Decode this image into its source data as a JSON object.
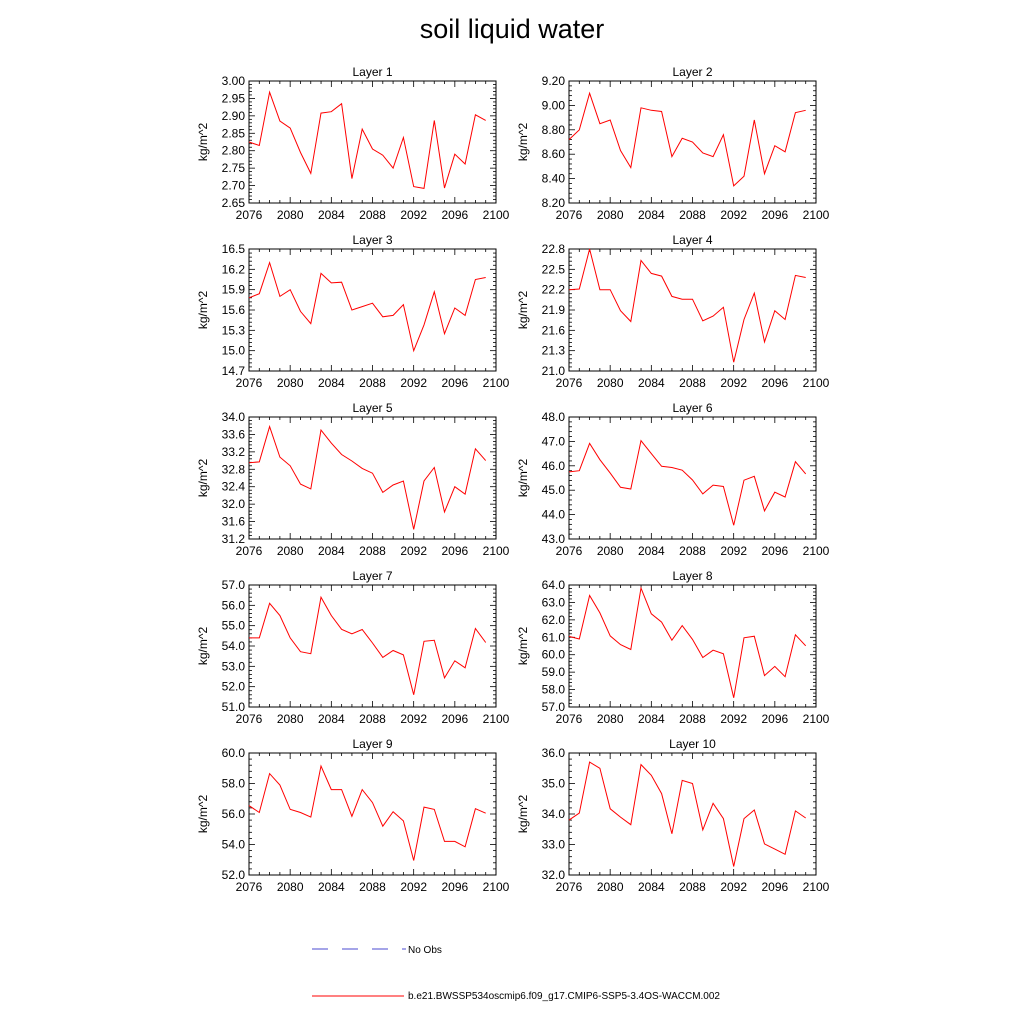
{
  "title": "soil liquid water",
  "colors": {
    "model_line": "#ff0000",
    "obs_line": "#4b4bd0",
    "axis": "#000000"
  },
  "legend": {
    "obs_label": "No Obs",
    "model_label": "b.e21.BWSSP534oscmip6.f09_g17.CMIP6-SSP5-3.4OS-WACCM.002"
  },
  "chart_data": [
    {
      "type": "line",
      "title": "Layer 1",
      "ylabel": "kg/m^2",
      "xlim": [
        2076,
        2100
      ],
      "xticks": [
        2076,
        2080,
        2084,
        2088,
        2092,
        2096,
        2100
      ],
      "ylim": [
        2.65,
        3.0
      ],
      "yticks": [
        "2.65",
        "2.70",
        "2.75",
        "2.80",
        "2.85",
        "2.90",
        "2.95",
        "3.00"
      ],
      "x": [
        2076,
        2077,
        2078,
        2079,
        2080,
        2081,
        2082,
        2083,
        2084,
        2085,
        2086,
        2087,
        2088,
        2089,
        2090,
        2091,
        2092,
        2093,
        2094,
        2095,
        2096,
        2097,
        2098,
        2099
      ],
      "values": [
        2.825,
        2.815,
        2.968,
        2.885,
        2.865,
        2.795,
        2.735,
        2.908,
        2.912,
        2.935,
        2.72,
        2.862,
        2.805,
        2.787,
        2.75,
        2.838,
        2.697,
        2.692,
        2.887,
        2.693,
        2.79,
        2.762,
        2.903,
        2.887
      ]
    },
    {
      "type": "line",
      "title": "Layer 2",
      "ylabel": "kg/m^2",
      "xlim": [
        2076,
        2100
      ],
      "xticks": [
        2076,
        2080,
        2084,
        2088,
        2092,
        2096,
        2100
      ],
      "ylim": [
        8.2,
        9.2
      ],
      "yticks": [
        "8.20",
        "8.40",
        "8.60",
        "8.80",
        "9.00",
        "9.20"
      ],
      "x": [
        2076,
        2077,
        2078,
        2079,
        2080,
        2081,
        2082,
        2083,
        2084,
        2085,
        2086,
        2087,
        2088,
        2089,
        2090,
        2091,
        2092,
        2093,
        2094,
        2095,
        2096,
        2097,
        2098,
        2099
      ],
      "values": [
        8.72,
        8.8,
        9.1,
        8.85,
        8.88,
        8.63,
        8.49,
        8.98,
        8.96,
        8.95,
        8.58,
        8.73,
        8.7,
        8.61,
        8.58,
        8.76,
        8.34,
        8.42,
        8.88,
        8.44,
        8.67,
        8.62,
        8.94,
        8.96
      ]
    },
    {
      "type": "line",
      "title": "Layer 3",
      "ylabel": "kg/m^2",
      "xlim": [
        2076,
        2100
      ],
      "xticks": [
        2076,
        2080,
        2084,
        2088,
        2092,
        2096,
        2100
      ],
      "ylim": [
        14.7,
        16.5
      ],
      "yticks": [
        "14.7",
        "15.0",
        "15.3",
        "15.6",
        "15.9",
        "16.2",
        "16.5"
      ],
      "x": [
        2076,
        2077,
        2078,
        2079,
        2080,
        2081,
        2082,
        2083,
        2084,
        2085,
        2086,
        2087,
        2088,
        2089,
        2090,
        2091,
        2092,
        2093,
        2094,
        2095,
        2096,
        2097,
        2098,
        2099
      ],
      "values": [
        15.78,
        15.84,
        16.3,
        15.8,
        15.9,
        15.58,
        15.4,
        16.14,
        16.0,
        16.01,
        15.6,
        15.65,
        15.7,
        15.5,
        15.52,
        15.68,
        15.0,
        15.38,
        15.87,
        15.25,
        15.63,
        15.52,
        16.05,
        16.08
      ]
    },
    {
      "type": "line",
      "title": "Layer 4",
      "ylabel": "kg/m^2",
      "xlim": [
        2076,
        2100
      ],
      "xticks": [
        2076,
        2080,
        2084,
        2088,
        2092,
        2096,
        2100
      ],
      "ylim": [
        21.0,
        22.8
      ],
      "yticks": [
        "21.0",
        "21.3",
        "21.6",
        "21.9",
        "22.2",
        "22.5",
        "22.8"
      ],
      "x": [
        2076,
        2077,
        2078,
        2079,
        2080,
        2081,
        2082,
        2083,
        2084,
        2085,
        2086,
        2087,
        2088,
        2089,
        2090,
        2091,
        2092,
        2093,
        2094,
        2095,
        2096,
        2097,
        2098,
        2099
      ],
      "values": [
        22.2,
        22.21,
        22.8,
        22.2,
        22.2,
        21.89,
        21.73,
        22.63,
        22.44,
        22.4,
        22.1,
        22.06,
        22.06,
        21.74,
        21.81,
        21.94,
        21.13,
        21.76,
        22.15,
        21.43,
        21.89,
        21.76,
        22.41,
        22.38
      ]
    },
    {
      "type": "line",
      "title": "Layer 5",
      "ylabel": "kg/m^2",
      "xlim": [
        2076,
        2100
      ],
      "xticks": [
        2076,
        2080,
        2084,
        2088,
        2092,
        2096,
        2100
      ],
      "ylim": [
        31.2,
        34.0
      ],
      "yticks": [
        "31.2",
        "31.6",
        "32.0",
        "32.4",
        "32.8",
        "33.2",
        "33.6",
        "34.0"
      ],
      "x": [
        2076,
        2077,
        2078,
        2079,
        2080,
        2081,
        2082,
        2083,
        2084,
        2085,
        2086,
        2087,
        2088,
        2089,
        2090,
        2091,
        2092,
        2093,
        2094,
        2095,
        2096,
        2097,
        2098,
        2099
      ],
      "values": [
        32.95,
        32.97,
        33.78,
        33.08,
        32.88,
        32.46,
        32.35,
        33.7,
        33.4,
        33.14,
        32.99,
        32.82,
        32.71,
        32.27,
        32.44,
        32.53,
        31.42,
        32.53,
        32.84,
        31.82,
        32.4,
        32.23,
        33.27,
        33.0
      ]
    },
    {
      "type": "line",
      "title": "Layer 6",
      "ylabel": "kg/m^2",
      "xlim": [
        2076,
        2100
      ],
      "xticks": [
        2076,
        2080,
        2084,
        2088,
        2092,
        2096,
        2100
      ],
      "ylim": [
        43.0,
        48.0
      ],
      "yticks": [
        "43.0",
        "44.0",
        "45.0",
        "46.0",
        "47.0",
        "48.0"
      ],
      "x": [
        2076,
        2077,
        2078,
        2079,
        2080,
        2081,
        2082,
        2083,
        2084,
        2085,
        2086,
        2087,
        2088,
        2089,
        2090,
        2091,
        2092,
        2093,
        2094,
        2095,
        2096,
        2097,
        2098,
        2099
      ],
      "values": [
        45.75,
        45.8,
        46.92,
        46.25,
        45.7,
        45.12,
        45.05,
        47.03,
        46.5,
        45.98,
        45.93,
        45.82,
        45.42,
        44.85,
        45.21,
        45.15,
        43.56,
        45.41,
        45.57,
        44.15,
        44.92,
        44.72,
        46.17,
        45.67
      ]
    },
    {
      "type": "line",
      "title": "Layer 7",
      "ylabel": "kg/m^2",
      "xlim": [
        2076,
        2100
      ],
      "xticks": [
        2076,
        2080,
        2084,
        2088,
        2092,
        2096,
        2100
      ],
      "ylim": [
        51.0,
        57.0
      ],
      "yticks": [
        "51.0",
        "52.0",
        "53.0",
        "54.0",
        "55.0",
        "56.0",
        "57.0"
      ],
      "x": [
        2076,
        2077,
        2078,
        2079,
        2080,
        2081,
        2082,
        2083,
        2084,
        2085,
        2086,
        2087,
        2088,
        2089,
        2090,
        2091,
        2092,
        2093,
        2094,
        2095,
        2096,
        2097,
        2098,
        2099
      ],
      "values": [
        54.4,
        54.4,
        56.1,
        55.5,
        54.4,
        53.72,
        53.62,
        56.4,
        55.5,
        54.82,
        54.6,
        54.81,
        54.15,
        53.44,
        53.78,
        53.56,
        51.6,
        54.23,
        54.28,
        52.43,
        53.27,
        52.93,
        54.86,
        54.17
      ]
    },
    {
      "type": "line",
      "title": "Layer 8",
      "ylabel": "kg/m^2",
      "xlim": [
        2076,
        2100
      ],
      "xticks": [
        2076,
        2080,
        2084,
        2088,
        2092,
        2096,
        2100
      ],
      "ylim": [
        57.0,
        64.0
      ],
      "yticks": [
        "57.0",
        "58.0",
        "59.0",
        "60.0",
        "61.0",
        "62.0",
        "63.0",
        "64.0"
      ],
      "x": [
        2076,
        2077,
        2078,
        2079,
        2080,
        2081,
        2082,
        2083,
        2084,
        2085,
        2086,
        2087,
        2088,
        2089,
        2090,
        2091,
        2092,
        2093,
        2094,
        2095,
        2096,
        2097,
        2098,
        2099
      ],
      "values": [
        61.05,
        60.9,
        63.4,
        62.4,
        61.08,
        60.58,
        60.3,
        63.82,
        62.35,
        61.87,
        60.83,
        61.67,
        60.88,
        59.84,
        60.26,
        60.05,
        57.53,
        60.97,
        61.06,
        58.8,
        59.33,
        58.74,
        61.14,
        60.51
      ]
    },
    {
      "type": "line",
      "title": "Layer 9",
      "ylabel": "kg/m^2",
      "xlim": [
        2076,
        2100
      ],
      "xticks": [
        2076,
        2080,
        2084,
        2088,
        2092,
        2096,
        2100
      ],
      "ylim": [
        52.0,
        60.0
      ],
      "yticks": [
        "52.0",
        "54.0",
        "56.0",
        "58.0",
        "60.0"
      ],
      "x": [
        2076,
        2077,
        2078,
        2079,
        2080,
        2081,
        2082,
        2083,
        2084,
        2085,
        2086,
        2087,
        2088,
        2089,
        2090,
        2091,
        2092,
        2093,
        2094,
        2095,
        2096,
        2097,
        2098,
        2099
      ],
      "values": [
        56.55,
        56.1,
        58.65,
        57.9,
        56.3,
        56.1,
        55.8,
        59.15,
        57.6,
        57.6,
        55.85,
        57.6,
        56.75,
        55.2,
        56.15,
        55.55,
        52.95,
        56.45,
        56.3,
        54.2,
        54.2,
        53.85,
        56.35,
        56.05
      ]
    },
    {
      "type": "line",
      "title": "Layer 10",
      "ylabel": "kg/m^2",
      "xlim": [
        2076,
        2100
      ],
      "xticks": [
        2076,
        2080,
        2084,
        2088,
        2092,
        2096,
        2100
      ],
      "ylim": [
        32.0,
        36.0
      ],
      "yticks": [
        "32.0",
        "33.0",
        "34.0",
        "35.0",
        "36.0"
      ],
      "x": [
        2076,
        2077,
        2078,
        2079,
        2080,
        2081,
        2082,
        2083,
        2084,
        2085,
        2086,
        2087,
        2088,
        2089,
        2090,
        2091,
        2092,
        2093,
        2094,
        2095,
        2096,
        2097,
        2098,
        2099
      ],
      "values": [
        33.8,
        34.03,
        35.7,
        35.5,
        34.17,
        33.9,
        33.65,
        35.62,
        35.27,
        34.67,
        33.35,
        35.1,
        35.0,
        33.48,
        34.35,
        33.85,
        32.28,
        33.85,
        34.13,
        33.02,
        32.85,
        32.68,
        34.1,
        33.87
      ]
    }
  ]
}
